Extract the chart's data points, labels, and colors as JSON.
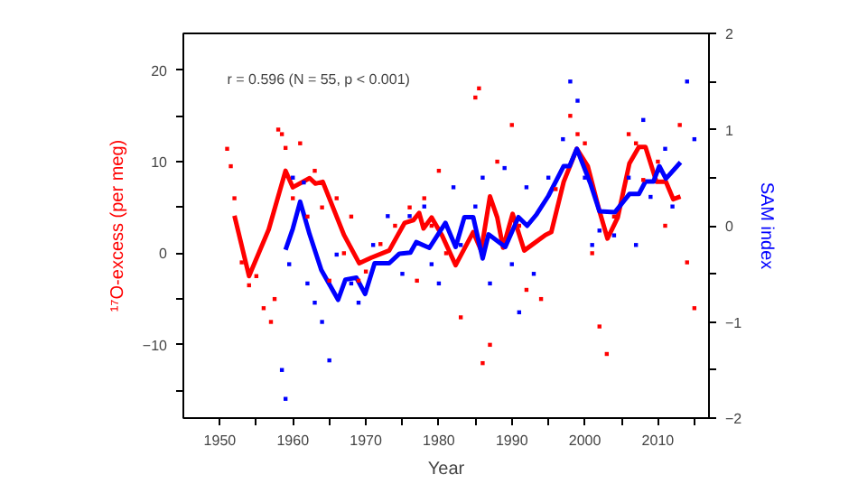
{
  "chart_data": {
    "type": "line",
    "xlabel": "Year",
    "ylabel": "¹⁷O-excess (per meg)",
    "y2label": "SAM index",
    "annotations": [
      "r = 0.596 (N = 55, p < 0.001)"
    ],
    "xlim": [
      1945,
      2017
    ],
    "xticks": [
      1950,
      1960,
      1970,
      1980,
      1990,
      2000,
      2010,
      {
        "value": 1955,
        "label": null
      },
      {
        "value": 1965,
        "label": null
      },
      {
        "value": 1975,
        "label": null
      },
      {
        "value": 1985,
        "label": null
      },
      {
        "value": 1995,
        "label": null
      },
      {
        "value": 2005,
        "label": null
      },
      {
        "value": 2015,
        "label": null
      }
    ],
    "ylim": [
      -18,
      24
    ],
    "yticks": [
      -10,
      0,
      10,
      20,
      {
        "value": -15,
        "label": null
      },
      {
        "value": -5,
        "label": null
      },
      {
        "value": 5,
        "label": null
      },
      {
        "value": 15,
        "label": null
      }
    ],
    "y2lim": [
      -2,
      2
    ],
    "y2ticks": [
      -2,
      -1,
      0,
      1,
      2,
      {
        "value": -1.5,
        "label": null
      },
      {
        "value": -0.5,
        "label": null
      },
      {
        "value": 0.5,
        "label": null
      },
      {
        "value": 1.5,
        "label": null
      }
    ],
    "grid": false,
    "marker": "none",
    "line_style": "solid",
    "series": [
      {
        "type": "scatter",
        "marker": "square",
        "color": "#ff0000",
        "x": [
          1951,
          1951.5,
          1952,
          1953,
          1954,
          1955,
          1956,
          1957,
          1957.5,
          1958,
          1958.5,
          1959,
          1960,
          1961,
          1962,
          1963,
          1964,
          1965,
          1966,
          1967,
          1968,
          1969,
          1970,
          1972,
          1974,
          1976,
          1977,
          1978,
          1979,
          1980,
          1981,
          1983,
          1985,
          1985.5,
          1986,
          1987,
          1988,
          1990,
          1991,
          1992,
          1994,
          1996,
          1998,
          1999,
          2000,
          2001,
          2002,
          2003,
          2004,
          2006,
          2007,
          2008,
          2010,
          2011,
          2013,
          2014,
          2015
        ],
        "values": [
          11.4,
          9.5,
          6,
          -1,
          -3.5,
          -2.5,
          -6,
          -7.5,
          -5,
          13.5,
          13,
          11.5,
          6,
          12,
          4,
          9,
          5,
          -3,
          6,
          0,
          4,
          -3,
          -2,
          1,
          3,
          5,
          -3,
          6,
          3,
          9,
          0,
          -7,
          17,
          18,
          -12,
          -10,
          10,
          14,
          3,
          -4,
          -5,
          7,
          15,
          13,
          12,
          0,
          -8,
          -11,
          4,
          13,
          12,
          8,
          10,
          3,
          14,
          -1,
          -6
        ]
      },
      {
        "type": "scatter",
        "marker": "square",
        "axis": "y2",
        "color": "#0000ff",
        "x": [
          1958.5,
          1959,
          1959.5,
          1960,
          1961.5,
          1962,
          1963,
          1964,
          1965,
          1966,
          1968,
          1969,
          1971,
          1973,
          1975,
          1976,
          1978,
          1979,
          1980,
          1982,
          1983,
          1985,
          1986,
          1987,
          1989,
          1990,
          1991,
          1992,
          1993,
          1995,
          1997,
          1998,
          1999,
          2000,
          2001,
          2002,
          2004,
          2006,
          2007,
          2008,
          2009,
          2011,
          2012,
          2014,
          2015
        ],
        "values": [
          -1.5,
          -1.8,
          -0.4,
          0.5,
          0.45,
          -0.6,
          -0.8,
          -1.0,
          -1.4,
          -0.3,
          -0.6,
          -0.8,
          -0.2,
          0.1,
          -0.5,
          0.1,
          0.2,
          -0.4,
          -0.6,
          0.4,
          -0.2,
          0.2,
          0.5,
          -0.6,
          0.6,
          -0.4,
          -0.9,
          0.4,
          -0.5,
          0.5,
          0.9,
          1.5,
          1.3,
          0.5,
          -0.2,
          -0.05,
          -0.1,
          0.5,
          -0.2,
          1.1,
          0.3,
          0.8,
          0.2,
          1.5,
          0.9
        ]
      },
      {
        "color": "#ff0000",
        "x": [
          1952,
          1954,
          1956.7,
          1959,
          1960,
          1962.3,
          1963.1,
          1964.1,
          1967,
          1969.1,
          1970.7,
          1973.2,
          1975.3,
          1976.5,
          1977.3,
          1977.9,
          1979,
          1980.4,
          1982.3,
          1984.7,
          1985.8,
          1987,
          1988,
          1988.8,
          1990.1,
          1991.7,
          1994.6,
          1995.4,
          1997.1,
          1998.9,
          2000.4,
          2002,
          2003.1,
          2004.5,
          2006.1,
          2007.4,
          2008.3,
          2009.8,
          2011.1,
          2012.1,
          2013.1
        ],
        "values": [
          4.1,
          -2.5,
          2.6,
          9.0,
          7.2,
          8.2,
          7.6,
          7.8,
          2.0,
          -1.1,
          -0.5,
          0.3,
          3.3,
          3.6,
          4.4,
          2.7,
          3.9,
          2.0,
          -1.3,
          2.3,
          0.3,
          6.2,
          3.9,
          0.6,
          4.3,
          0.3,
          2.0,
          2.3,
          7.8,
          11.4,
          9.5,
          4.6,
          1.6,
          3.9,
          9.8,
          11.6,
          11.6,
          7.8,
          7.8,
          5.9,
          6.2
        ]
      },
      {
        "axis": "y2",
        "color": "#0000ff",
        "x": [
          1959,
          1960,
          1961,
          1962.3,
          1963.9,
          1966.2,
          1967.2,
          1968.7,
          1969.9,
          1971.2,
          1973.2,
          1974.6,
          1976.1,
          1976.9,
          1978.7,
          1980.9,
          1982.3,
          1983.5,
          1984.7,
          1986,
          1986.8,
          1989.1,
          1990.9,
          1992.1,
          1993.4,
          1995,
          1997.1,
          1997.9,
          1998.9,
          2000.8,
          2002,
          2004.1,
          2006.1,
          2007.4,
          2008.3,
          2009.4,
          2010.2,
          2011.1,
          2013.1
        ],
        "values": [
          -0.25,
          -0.03,
          0.25,
          -0.09,
          -0.46,
          -0.77,
          -0.56,
          -0.54,
          -0.71,
          -0.39,
          -0.39,
          -0.29,
          -0.28,
          -0.17,
          -0.23,
          0.03,
          -0.22,
          0.09,
          0.09,
          -0.34,
          -0.09,
          -0.22,
          0.09,
          0,
          0.12,
          0.31,
          0.62,
          0.62,
          0.8,
          0.43,
          0.15,
          0.14,
          0.33,
          0.33,
          0.46,
          0.46,
          0.62,
          0.49,
          0.66
        ]
      }
    ]
  }
}
